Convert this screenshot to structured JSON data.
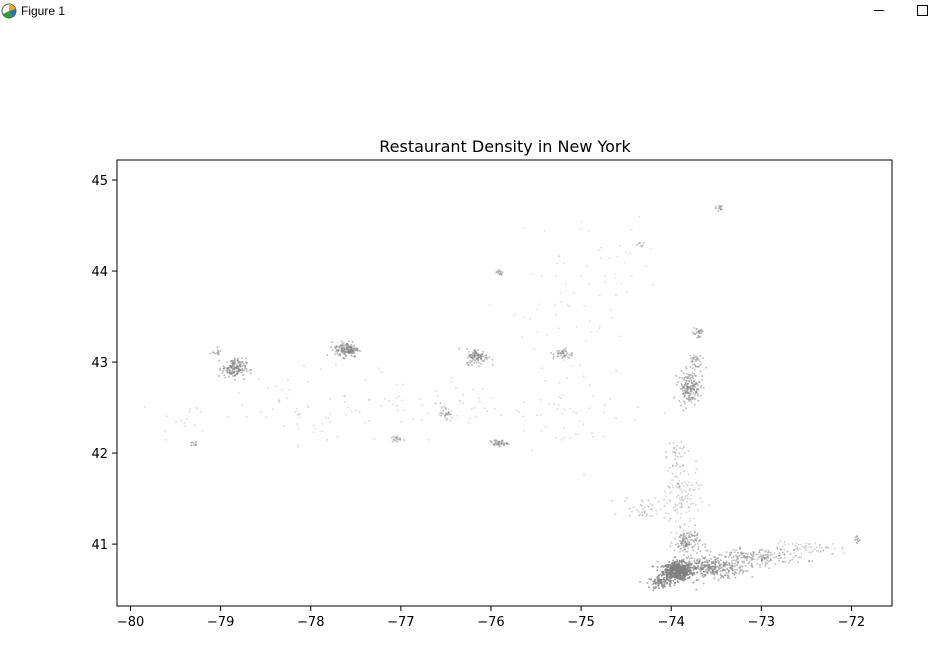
{
  "window": {
    "title": "Figure 1",
    "icon": "matplotlib-figure-icon",
    "controls": [
      "minimize-icon",
      "maximize-icon"
    ]
  },
  "chart_data": {
    "type": "scatter",
    "title": "Restaurant Density in New York",
    "xlabel": "",
    "ylabel": "",
    "xlim": [
      -80.15,
      -71.55
    ],
    "ylim": [
      40.32,
      45.22
    ],
    "x_ticks": [
      -80,
      -79,
      -78,
      -77,
      -76,
      -75,
      -74,
      -73,
      -72
    ],
    "y_ticks": [
      41,
      42,
      43,
      44,
      45
    ],
    "x_tick_labels": [
      "−80",
      "−79",
      "−78",
      "−77",
      "−76",
      "−75",
      "−74",
      "−73",
      "−72"
    ],
    "y_tick_labels": [
      "41",
      "42",
      "43",
      "44",
      "45"
    ],
    "grid": false,
    "legend": "none",
    "marker_color": "#808080",
    "clusters": [
      {
        "lon": -73.93,
        "lat": 40.7,
        "spread_lon": 0.13,
        "spread_lat": 0.08,
        "weight": 520,
        "alpha": 0.75
      },
      {
        "lon": -73.6,
        "lat": 40.74,
        "spread_lon": 0.35,
        "spread_lat": 0.1,
        "weight": 320,
        "alpha": 0.55
      },
      {
        "lon": -73.05,
        "lat": 40.86,
        "spread_lon": 0.45,
        "spread_lat": 0.08,
        "weight": 170,
        "alpha": 0.45
      },
      {
        "lon": -72.45,
        "lat": 40.95,
        "spread_lon": 0.35,
        "spread_lat": 0.06,
        "weight": 60,
        "alpha": 0.3
      },
      {
        "lon": -74.12,
        "lat": 40.58,
        "spread_lon": 0.1,
        "spread_lat": 0.05,
        "weight": 80,
        "alpha": 0.65
      },
      {
        "lon": -73.82,
        "lat": 41.02,
        "spread_lon": 0.12,
        "spread_lat": 0.12,
        "weight": 130,
        "alpha": 0.45
      },
      {
        "lon": -73.9,
        "lat": 41.5,
        "spread_lon": 0.18,
        "spread_lat": 0.3,
        "weight": 120,
        "alpha": 0.3
      },
      {
        "lon": -74.3,
        "lat": 41.4,
        "spread_lon": 0.2,
        "spread_lat": 0.1,
        "weight": 40,
        "alpha": 0.35
      },
      {
        "lon": -78.85,
        "lat": 42.93,
        "spread_lon": 0.11,
        "spread_lat": 0.09,
        "weight": 160,
        "alpha": 0.5
      },
      {
        "lon": -77.6,
        "lat": 43.14,
        "spread_lon": 0.11,
        "spread_lat": 0.07,
        "weight": 150,
        "alpha": 0.5
      },
      {
        "lon": -76.15,
        "lat": 43.06,
        "spread_lon": 0.1,
        "spread_lat": 0.07,
        "weight": 110,
        "alpha": 0.45
      },
      {
        "lon": -73.8,
        "lat": 42.72,
        "spread_lon": 0.1,
        "spread_lat": 0.14,
        "weight": 160,
        "alpha": 0.5
      },
      {
        "lon": -75.2,
        "lat": 43.09,
        "spread_lon": 0.09,
        "spread_lat": 0.05,
        "weight": 45,
        "alpha": 0.45
      },
      {
        "lon": -75.92,
        "lat": 42.11,
        "spread_lon": 0.08,
        "spread_lat": 0.03,
        "weight": 45,
        "alpha": 0.45
      },
      {
        "lon": -76.5,
        "lat": 42.44,
        "spread_lon": 0.05,
        "spread_lat": 0.05,
        "weight": 25,
        "alpha": 0.45
      },
      {
        "lon": -77.05,
        "lat": 42.15,
        "spread_lon": 0.05,
        "spread_lat": 0.03,
        "weight": 18,
        "alpha": 0.45
      },
      {
        "lon": -73.7,
        "lat": 43.32,
        "spread_lon": 0.05,
        "spread_lat": 0.07,
        "weight": 28,
        "alpha": 0.45
      },
      {
        "lon": -73.75,
        "lat": 43.0,
        "spread_lon": 0.07,
        "spread_lat": 0.1,
        "weight": 40,
        "alpha": 0.45
      },
      {
        "lon": -75.9,
        "lat": 43.98,
        "spread_lon": 0.05,
        "spread_lat": 0.03,
        "weight": 14,
        "alpha": 0.45
      },
      {
        "lon": -73.47,
        "lat": 44.7,
        "spread_lon": 0.04,
        "spread_lat": 0.03,
        "weight": 12,
        "alpha": 0.5
      },
      {
        "lon": -71.93,
        "lat": 41.05,
        "spread_lon": 0.02,
        "spread_lat": 0.03,
        "weight": 8,
        "alpha": 0.6
      },
      {
        "lon": -79.3,
        "lat": 42.1,
        "spread_lon": 0.06,
        "spread_lat": 0.03,
        "weight": 12,
        "alpha": 0.4
      },
      {
        "lon": -79.05,
        "lat": 43.1,
        "spread_lon": 0.06,
        "spread_lat": 0.03,
        "weight": 14,
        "alpha": 0.45
      },
      {
        "lon": -74.35,
        "lat": 44.3,
        "spread_lon": 0.05,
        "spread_lat": 0.03,
        "weight": 8,
        "alpha": 0.4
      },
      {
        "lon": -73.95,
        "lat": 41.95,
        "spread_lon": 0.1,
        "spread_lat": 0.15,
        "weight": 30,
        "alpha": 0.4
      },
      {
        "lon": -76.5,
        "lat": 42.55,
        "spread_lon": 0.6,
        "spread_lat": 0.3,
        "weight": 60,
        "alpha": 0.25
      },
      {
        "lon": -78.0,
        "lat": 42.5,
        "spread_lon": 0.7,
        "spread_lat": 0.35,
        "weight": 60,
        "alpha": 0.25
      },
      {
        "lon": -75.0,
        "lat": 42.5,
        "spread_lon": 0.6,
        "spread_lat": 0.4,
        "weight": 50,
        "alpha": 0.25
      },
      {
        "lon": -74.8,
        "lat": 44.1,
        "spread_lon": 0.7,
        "spread_lat": 0.45,
        "weight": 40,
        "alpha": 0.2
      },
      {
        "lon": -75.3,
        "lat": 43.5,
        "spread_lon": 0.5,
        "spread_lat": 0.3,
        "weight": 30,
        "alpha": 0.2
      },
      {
        "lon": -79.4,
        "lat": 42.4,
        "spread_lon": 0.25,
        "spread_lat": 0.2,
        "weight": 15,
        "alpha": 0.25
      }
    ]
  }
}
